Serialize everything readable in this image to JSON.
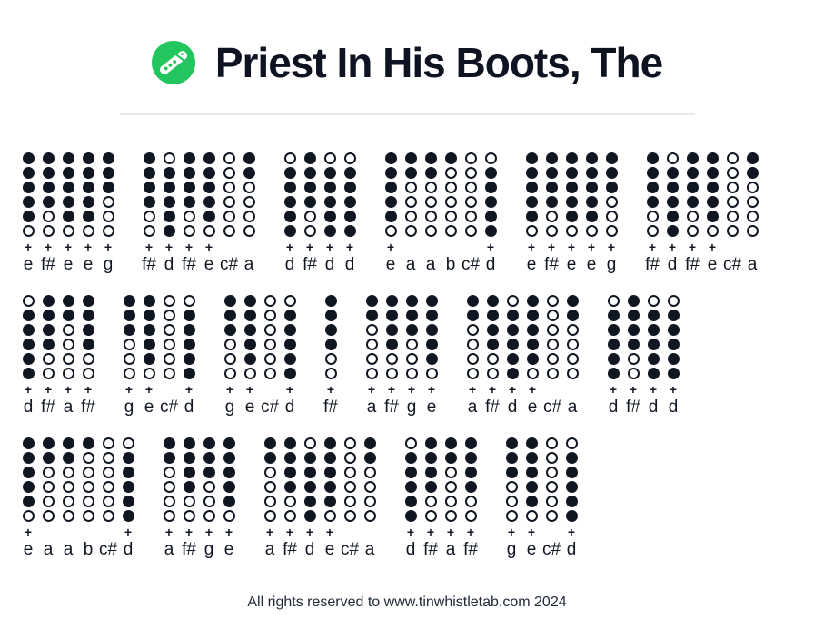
{
  "header": {
    "title": "Priest In His Boots, The",
    "logo_icon": "tin-whistle-icon"
  },
  "footer": {
    "text": "All rights reserved to www.tinwhistletab.com 2024"
  },
  "colors": {
    "ink": "#111722",
    "brand_green": "#22c55e",
    "divider": "#e5e7eb"
  },
  "tab": {
    "hole_count": 6,
    "plus_symbol": "+",
    "fingerings": {
      "d": [
        0,
        1,
        1,
        1,
        1,
        1
      ],
      "e": [
        1,
        1,
        1,
        1,
        1,
        0
      ],
      "f#": [
        1,
        1,
        1,
        1,
        0,
        0
      ],
      "g": [
        1,
        1,
        1,
        0,
        0,
        0
      ],
      "a": [
        1,
        1,
        0,
        0,
        0,
        0
      ],
      "b": [
        1,
        0,
        0,
        0,
        0,
        0
      ],
      "c#": [
        0,
        0,
        0,
        0,
        0,
        0
      ]
    },
    "rows": [
      {
        "groups": [
          {
            "notes": [
              {
                "note": "e",
                "plus": true
              },
              {
                "note": "f#",
                "plus": true
              },
              {
                "note": "e",
                "plus": true
              },
              {
                "note": "e",
                "plus": true
              },
              {
                "note": "g",
                "plus": true
              }
            ]
          },
          {
            "notes": [
              {
                "note": "f#",
                "plus": true
              },
              {
                "note": "d",
                "plus": true
              },
              {
                "note": "f#",
                "plus": true
              },
              {
                "note": "e",
                "plus": true
              },
              {
                "note": "c#",
                "plus": false
              },
              {
                "note": "a",
                "plus": false
              }
            ]
          },
          {
            "notes": [
              {
                "note": "d",
                "plus": true
              },
              {
                "note": "f#",
                "plus": true
              },
              {
                "note": "d",
                "plus": true
              },
              {
                "note": "d",
                "plus": true
              }
            ]
          },
          {
            "notes": [
              {
                "note": "e",
                "plus": true
              },
              {
                "note": "a",
                "plus": false
              },
              {
                "note": "a",
                "plus": false
              },
              {
                "note": "b",
                "plus": false
              },
              {
                "note": "c#",
                "plus": false
              },
              {
                "note": "d",
                "plus": true
              }
            ]
          },
          {
            "notes": [
              {
                "note": "e",
                "plus": true
              },
              {
                "note": "f#",
                "plus": true
              },
              {
                "note": "e",
                "plus": true
              },
              {
                "note": "e",
                "plus": true
              },
              {
                "note": "g",
                "plus": true
              }
            ]
          },
          {
            "notes": [
              {
                "note": "f#",
                "plus": true
              },
              {
                "note": "d",
                "plus": true
              },
              {
                "note": "f#",
                "plus": true
              },
              {
                "note": "e",
                "plus": true
              },
              {
                "note": "c#",
                "plus": false
              },
              {
                "note": "a",
                "plus": false
              }
            ]
          }
        ]
      },
      {
        "groups": [
          {
            "notes": [
              {
                "note": "d",
                "plus": true
              },
              {
                "note": "f#",
                "plus": true
              },
              {
                "note": "a",
                "plus": true
              },
              {
                "note": "f#",
                "plus": true
              }
            ]
          },
          {
            "notes": [
              {
                "note": "g",
                "plus": true
              },
              {
                "note": "e",
                "plus": true
              },
              {
                "note": "c#",
                "plus": false
              },
              {
                "note": "d",
                "plus": true
              }
            ]
          },
          {
            "notes": [
              {
                "note": "g",
                "plus": true
              },
              {
                "note": "e",
                "plus": true
              },
              {
                "note": "c#",
                "plus": false
              },
              {
                "note": "d",
                "plus": true
              }
            ]
          },
          {
            "notes": [
              {
                "note": "f#",
                "plus": true
              }
            ]
          },
          {
            "notes": [
              {
                "note": "a",
                "plus": true
              },
              {
                "note": "f#",
                "plus": true
              },
              {
                "note": "g",
                "plus": true
              },
              {
                "note": "e",
                "plus": true
              }
            ]
          },
          {
            "notes": [
              {
                "note": "a",
                "plus": true
              },
              {
                "note": "f#",
                "plus": true
              },
              {
                "note": "d",
                "plus": true
              },
              {
                "note": "e",
                "plus": true
              },
              {
                "note": "c#",
                "plus": false
              },
              {
                "note": "a",
                "plus": false
              }
            ]
          },
          {
            "notes": [
              {
                "note": "d",
                "plus": true
              },
              {
                "note": "f#",
                "plus": true
              },
              {
                "note": "d",
                "plus": true
              },
              {
                "note": "d",
                "plus": true
              }
            ]
          }
        ]
      },
      {
        "groups": [
          {
            "notes": [
              {
                "note": "e",
                "plus": true
              },
              {
                "note": "a",
                "plus": false
              },
              {
                "note": "a",
                "plus": false
              },
              {
                "note": "b",
                "plus": false
              },
              {
                "note": "c#",
                "plus": false
              },
              {
                "note": "d",
                "plus": true
              }
            ]
          },
          {
            "notes": [
              {
                "note": "a",
                "plus": true
              },
              {
                "note": "f#",
                "plus": true
              },
              {
                "note": "g",
                "plus": true
              },
              {
                "note": "e",
                "plus": true
              }
            ]
          },
          {
            "notes": [
              {
                "note": "a",
                "plus": true
              },
              {
                "note": "f#",
                "plus": true
              },
              {
                "note": "d",
                "plus": true
              },
              {
                "note": "e",
                "plus": true
              },
              {
                "note": "c#",
                "plus": false
              },
              {
                "note": "a",
                "plus": false
              }
            ]
          },
          {
            "notes": [
              {
                "note": "d",
                "plus": true
              },
              {
                "note": "f#",
                "plus": true
              },
              {
                "note": "a",
                "plus": true
              },
              {
                "note": "f#",
                "plus": true
              }
            ]
          },
          {
            "notes": [
              {
                "note": "g",
                "plus": true
              },
              {
                "note": "e",
                "plus": true
              },
              {
                "note": "c#",
                "plus": false
              },
              {
                "note": "d",
                "plus": true
              }
            ]
          }
        ]
      }
    ]
  }
}
